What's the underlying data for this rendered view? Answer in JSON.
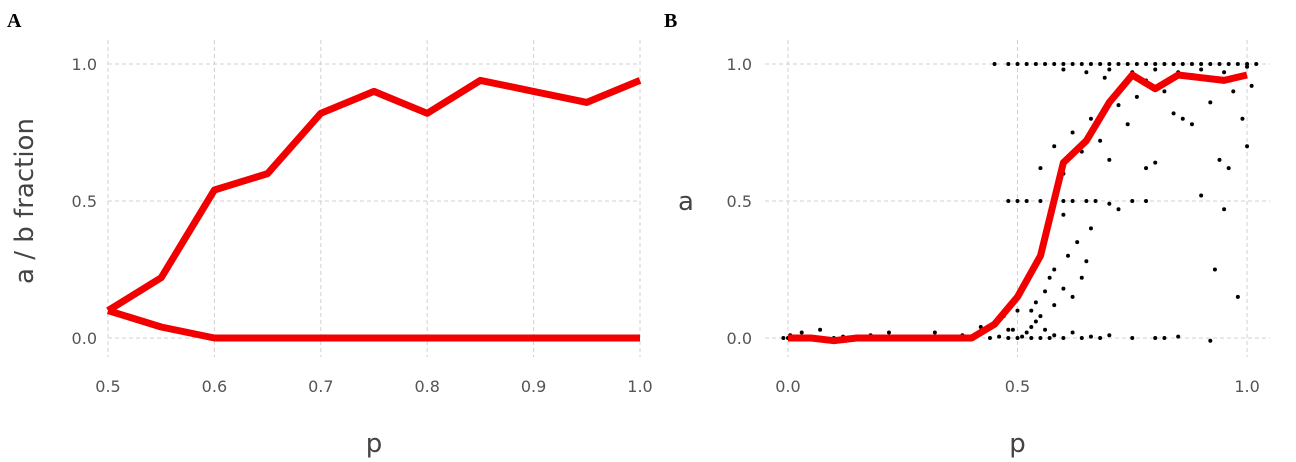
{
  "chart_data": [
    {
      "panel_label": "A",
      "type": "line",
      "xlabel": "p",
      "ylabel": "a / b fraction",
      "xlim": [
        0.5,
        1.0
      ],
      "ylim": [
        0,
        1
      ],
      "x_ticks": [
        "0.5",
        "0.6",
        "0.7",
        "0.8",
        "0.9",
        "1.0"
      ],
      "y_ticks": [
        "0.0",
        "0.5",
        "1.0"
      ],
      "grid": true,
      "color": "#f20000",
      "series": [
        {
          "x": [
            0.5,
            0.55,
            0.6,
            0.65,
            0.7,
            0.75,
            0.8,
            0.85,
            0.9,
            0.95,
            1.0
          ],
          "values": [
            0.1,
            0.22,
            0.54,
            0.6,
            0.82,
            0.9,
            0.82,
            0.94,
            0.9,
            0.86,
            0.94
          ]
        },
        {
          "x": [
            0.5,
            0.55,
            0.6,
            0.65,
            0.7,
            0.75,
            0.8,
            0.85,
            0.9,
            0.95,
            1.0
          ],
          "values": [
            0.1,
            0.04,
            0.0,
            0.0,
            0.0,
            0.0,
            0.0,
            0.0,
            0.0,
            0.0,
            0.0
          ]
        }
      ]
    },
    {
      "panel_label": "B",
      "type": "scatter",
      "xlabel": "p",
      "ylabel": "a",
      "xlim": [
        -0.05,
        1.05
      ],
      "ylim": [
        0,
        1
      ],
      "x_ticks": [
        "0.0",
        "0.5",
        "1.0"
      ],
      "y_ticks": [
        "0.0",
        "0.5",
        "1.0"
      ],
      "grid": true,
      "line_color": "#f20000",
      "point_color": "#000000",
      "series": [
        {
          "type": "line",
          "x": [
            0.0,
            0.05,
            0.1,
            0.15,
            0.2,
            0.25,
            0.3,
            0.35,
            0.4,
            0.45,
            0.5,
            0.55,
            0.6,
            0.65,
            0.7,
            0.75,
            0.8,
            0.85,
            0.9,
            0.95,
            1.0
          ],
          "values": [
            0.0,
            0.0,
            -0.01,
            0.0,
            0.0,
            0.0,
            0.0,
            0.0,
            0.0,
            0.05,
            0.15,
            0.3,
            0.64,
            0.72,
            0.86,
            0.96,
            0.91,
            0.96,
            0.95,
            0.94,
            0.96
          ]
        }
      ],
      "points": [
        {
          "x": 0.0,
          "y": 0.0
        },
        {
          "x": 0.005,
          "y": 0.01
        },
        {
          "x": -0.01,
          "y": 0.0
        },
        {
          "x": 0.01,
          "y": -0.005
        },
        {
          "x": 0.02,
          "y": 0.0
        },
        {
          "x": 0.03,
          "y": 0.02
        },
        {
          "x": 0.05,
          "y": 0.0
        },
        {
          "x": 0.07,
          "y": 0.03
        },
        {
          "x": 0.1,
          "y": 0.0
        },
        {
          "x": 0.12,
          "y": 0.005
        },
        {
          "x": 0.15,
          "y": 0.0
        },
        {
          "x": 0.18,
          "y": 0.01
        },
        {
          "x": 0.2,
          "y": 0.0
        },
        {
          "x": 0.22,
          "y": 0.02
        },
        {
          "x": 0.25,
          "y": 0.0
        },
        {
          "x": 0.28,
          "y": 0.005
        },
        {
          "x": 0.3,
          "y": 0.0
        },
        {
          "x": 0.32,
          "y": 0.02
        },
        {
          "x": 0.35,
          "y": 0.0
        },
        {
          "x": 0.38,
          "y": 0.01
        },
        {
          "x": 0.4,
          "y": 0.0
        },
        {
          "x": 0.42,
          "y": 0.04
        },
        {
          "x": 0.44,
          "y": 0.0
        },
        {
          "x": 0.45,
          "y": 0.05
        },
        {
          "x": 0.46,
          "y": 0.005
        },
        {
          "x": 0.47,
          "y": 0.08
        },
        {
          "x": 0.48,
          "y": 0.0
        },
        {
          "x": 0.49,
          "y": 0.03
        },
        {
          "x": 0.5,
          "y": 0.0
        },
        {
          "x": 0.5,
          "y": 0.1
        },
        {
          "x": 0.51,
          "y": 0.005
        },
        {
          "x": 0.52,
          "y": 0.02
        },
        {
          "x": 0.53,
          "y": 0.0
        },
        {
          "x": 0.54,
          "y": 0.06
        },
        {
          "x": 0.55,
          "y": 0.0
        },
        {
          "x": 0.56,
          "y": 0.03
        },
        {
          "x": 0.57,
          "y": 0.0
        },
        {
          "x": 0.58,
          "y": 0.01
        },
        {
          "x": 0.6,
          "y": 0.0
        },
        {
          "x": 0.62,
          "y": 0.02
        },
        {
          "x": 0.64,
          "y": 0.0
        },
        {
          "x": 0.66,
          "y": 0.005
        },
        {
          "x": 0.68,
          "y": 0.0
        },
        {
          "x": 0.7,
          "y": 0.01
        },
        {
          "x": 0.48,
          "y": 0.03
        },
        {
          "x": 0.53,
          "y": 0.04
        },
        {
          "x": 0.53,
          "y": 0.1
        },
        {
          "x": 0.54,
          "y": 0.13
        },
        {
          "x": 0.56,
          "y": 0.17
        },
        {
          "x": 0.57,
          "y": 0.22
        },
        {
          "x": 0.58,
          "y": 0.25
        },
        {
          "x": 0.6,
          "y": 0.18
        },
        {
          "x": 0.61,
          "y": 0.3
        },
        {
          "x": 0.63,
          "y": 0.35
        },
        {
          "x": 0.65,
          "y": 0.28
        },
        {
          "x": 0.66,
          "y": 0.4
        },
        {
          "x": 0.62,
          "y": 0.15
        },
        {
          "x": 0.55,
          "y": 0.08
        },
        {
          "x": 0.58,
          "y": 0.12
        },
        {
          "x": 0.64,
          "y": 0.22
        },
        {
          "x": 0.48,
          "y": 0.5
        },
        {
          "x": 0.5,
          "y": 0.5
        },
        {
          "x": 0.52,
          "y": 0.5
        },
        {
          "x": 0.55,
          "y": 0.5
        },
        {
          "x": 0.58,
          "y": 0.5
        },
        {
          "x": 0.6,
          "y": 0.5
        },
        {
          "x": 0.62,
          "y": 0.5
        },
        {
          "x": 0.65,
          "y": 0.5
        },
        {
          "x": 0.67,
          "y": 0.5
        },
        {
          "x": 0.7,
          "y": 0.49
        },
        {
          "x": 0.72,
          "y": 0.47
        },
        {
          "x": 0.75,
          "y": 0.5
        },
        {
          "x": 0.78,
          "y": 0.5
        },
        {
          "x": 0.6,
          "y": 0.45
        },
        {
          "x": 0.55,
          "y": 0.62
        },
        {
          "x": 0.58,
          "y": 0.7
        },
        {
          "x": 0.6,
          "y": 0.6
        },
        {
          "x": 0.62,
          "y": 0.75
        },
        {
          "x": 0.64,
          "y": 0.68
        },
        {
          "x": 0.66,
          "y": 0.8
        },
        {
          "x": 0.68,
          "y": 0.72
        },
        {
          "x": 0.7,
          "y": 0.65
        },
        {
          "x": 0.72,
          "y": 0.85
        },
        {
          "x": 0.74,
          "y": 0.78
        },
        {
          "x": 0.76,
          "y": 0.88
        },
        {
          "x": 0.78,
          "y": 0.62
        },
        {
          "x": 0.8,
          "y": 0.64
        },
        {
          "x": 0.82,
          "y": 0.9
        },
        {
          "x": 0.84,
          "y": 0.82
        },
        {
          "x": 0.86,
          "y": 0.8
        },
        {
          "x": 0.88,
          "y": 0.78
        },
        {
          "x": 0.9,
          "y": 0.52
        },
        {
          "x": 0.92,
          "y": 0.86
        },
        {
          "x": 0.93,
          "y": 0.25
        },
        {
          "x": 0.94,
          "y": 0.65
        },
        {
          "x": 0.95,
          "y": 0.47
        },
        {
          "x": 0.96,
          "y": 0.62
        },
        {
          "x": 0.98,
          "y": 0.15
        },
        {
          "x": 0.99,
          "y": 0.8
        },
        {
          "x": 1.0,
          "y": 0.7
        },
        {
          "x": 1.01,
          "y": 0.92
        },
        {
          "x": 0.97,
          "y": 0.9
        },
        {
          "x": 0.75,
          "y": 0.0
        },
        {
          "x": 0.8,
          "y": 0.0
        },
        {
          "x": 0.82,
          "y": 0.0
        },
        {
          "x": 0.85,
          "y": 0.005
        },
        {
          "x": 0.92,
          "y": -0.01
        },
        {
          "x": 0.45,
          "y": 1.0
        },
        {
          "x": 0.48,
          "y": 1.0
        },
        {
          "x": 0.5,
          "y": 1.0
        },
        {
          "x": 0.52,
          "y": 1.0
        },
        {
          "x": 0.54,
          "y": 1.0
        },
        {
          "x": 0.56,
          "y": 1.0
        },
        {
          "x": 0.58,
          "y": 1.0
        },
        {
          "x": 0.6,
          "y": 1.0
        },
        {
          "x": 0.62,
          "y": 1.0
        },
        {
          "x": 0.64,
          "y": 1.0
        },
        {
          "x": 0.66,
          "y": 1.0
        },
        {
          "x": 0.68,
          "y": 1.0
        },
        {
          "x": 0.7,
          "y": 1.0
        },
        {
          "x": 0.72,
          "y": 1.0
        },
        {
          "x": 0.74,
          "y": 1.0
        },
        {
          "x": 0.76,
          "y": 1.0
        },
        {
          "x": 0.78,
          "y": 1.0
        },
        {
          "x": 0.8,
          "y": 1.0
        },
        {
          "x": 0.82,
          "y": 1.0
        },
        {
          "x": 0.84,
          "y": 1.0
        },
        {
          "x": 0.86,
          "y": 1.0
        },
        {
          "x": 0.88,
          "y": 1.0
        },
        {
          "x": 0.9,
          "y": 1.0
        },
        {
          "x": 0.92,
          "y": 1.0
        },
        {
          "x": 0.94,
          "y": 1.0
        },
        {
          "x": 0.96,
          "y": 1.0
        },
        {
          "x": 0.98,
          "y": 1.0
        },
        {
          "x": 1.0,
          "y": 1.0
        },
        {
          "x": 1.02,
          "y": 1.0
        },
        {
          "x": 0.6,
          "y": 0.98
        },
        {
          "x": 0.65,
          "y": 0.97
        },
        {
          "x": 0.7,
          "y": 0.98
        },
        {
          "x": 0.75,
          "y": 0.97
        },
        {
          "x": 0.8,
          "y": 0.98
        },
        {
          "x": 0.85,
          "y": 0.97
        },
        {
          "x": 0.9,
          "y": 0.98
        },
        {
          "x": 0.95,
          "y": 0.97
        },
        {
          "x": 1.0,
          "y": 0.99
        },
        {
          "x": 0.69,
          "y": 0.95
        },
        {
          "x": 0.78,
          "y": 0.94
        },
        {
          "x": 0.88,
          "y": 0.96
        },
        {
          "x": 0.97,
          "y": 0.95
        }
      ]
    }
  ]
}
